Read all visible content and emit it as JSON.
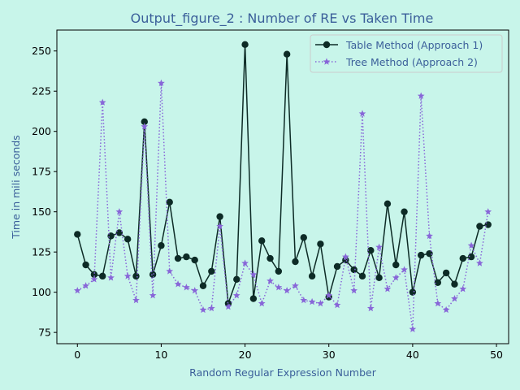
{
  "chart_data": {
    "type": "line",
    "title": "Output_figure_2 : Number of RE vs Taken Time",
    "xlabel": "Random Regular Expression Number",
    "ylabel": "Time in mili seconds",
    "xlim": [
      -2.45,
      51.45
    ],
    "ylim": [
      68,
      263
    ],
    "xticks": [
      0,
      10,
      20,
      30,
      40,
      50
    ],
    "yticks": [
      75,
      100,
      125,
      150,
      175,
      200,
      225,
      250
    ],
    "grid": false,
    "legend_position": "upper right",
    "background_color": "#c8f5ea",
    "x": [
      0,
      1,
      2,
      3,
      4,
      5,
      6,
      7,
      8,
      9,
      10,
      11,
      12,
      13,
      14,
      15,
      16,
      17,
      18,
      19,
      20,
      21,
      22,
      23,
      24,
      25,
      26,
      27,
      28,
      29,
      30,
      31,
      32,
      33,
      34,
      35,
      36,
      37,
      38,
      39,
      40,
      41,
      42,
      43,
      44,
      45,
      46,
      47,
      48,
      49
    ],
    "series": [
      {
        "name": "Table Method (Approach 1)",
        "color": "#0d2b26",
        "line_style": "solid",
        "marker": "circle",
        "values": [
          136,
          117,
          111,
          110,
          135,
          137,
          133,
          110,
          206,
          111,
          129,
          156,
          121,
          122,
          120,
          104,
          113,
          147,
          93,
          108,
          254,
          96,
          132,
          121,
          113,
          248,
          119,
          134,
          110,
          130,
          97,
          116,
          120,
          114,
          110,
          126,
          109,
          155,
          117,
          150,
          100,
          123,
          124,
          106,
          112,
          105,
          121,
          122,
          141,
          142
        ]
      },
      {
        "name": "Tree Method (Approach 2)",
        "color": "#8866d8",
        "line_style": "dotted",
        "marker": "star",
        "values": [
          101,
          104,
          108,
          218,
          109,
          150,
          110,
          95,
          203,
          98,
          230,
          113,
          105,
          103,
          101,
          89,
          90,
          141,
          91,
          98,
          118,
          111,
          93,
          107,
          103,
          101,
          104,
          95,
          94,
          93,
          98,
          92,
          122,
          101,
          211,
          90,
          128,
          102,
          109,
          114,
          77,
          222,
          135,
          93,
          89,
          96,
          102,
          129,
          118,
          150
        ]
      }
    ]
  }
}
